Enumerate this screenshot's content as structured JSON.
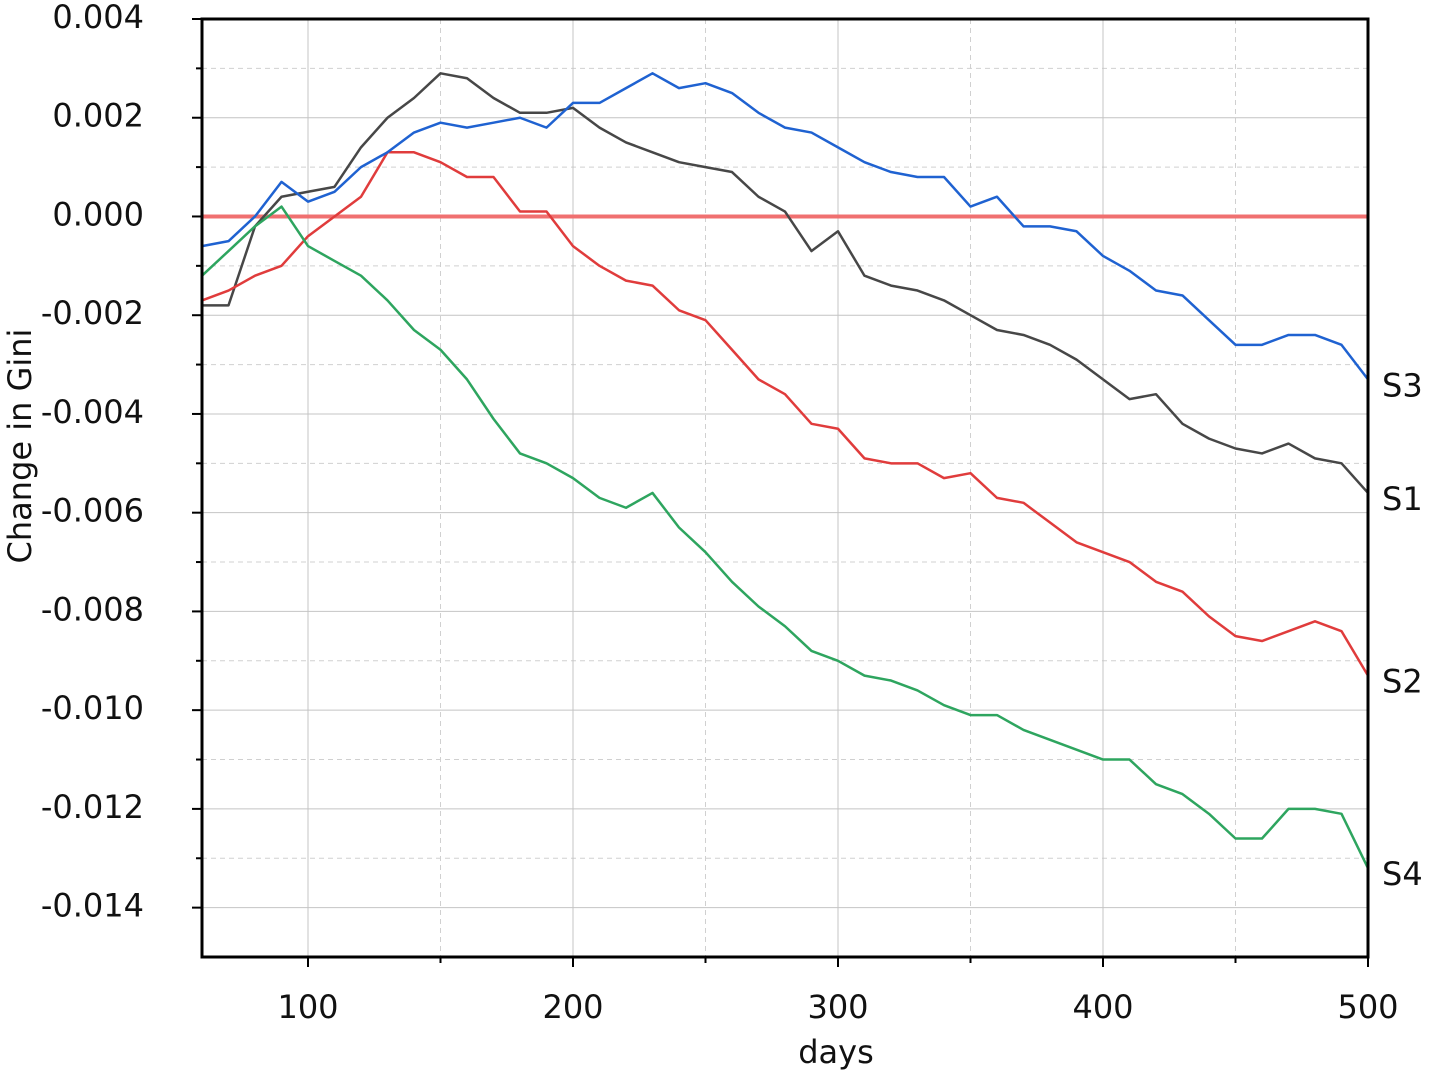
{
  "chart_data": {
    "type": "line",
    "xlabel": "days",
    "ylabel": "Change in Gini",
    "x": [
      60,
      70,
      80,
      90,
      100,
      110,
      120,
      130,
      140,
      150,
      160,
      170,
      180,
      190,
      200,
      210,
      220,
      230,
      240,
      250,
      260,
      270,
      280,
      290,
      300,
      310,
      320,
      330,
      340,
      350,
      360,
      370,
      380,
      390,
      400,
      410,
      420,
      430,
      440,
      450,
      460,
      470,
      480,
      490,
      500
    ],
    "series": [
      {
        "name": "S1",
        "color": "#474747",
        "values": [
          -0.0018,
          -0.0018,
          -0.0002,
          0.0004,
          0.0005,
          0.0006,
          0.0014,
          0.002,
          0.0024,
          0.0029,
          0.0028,
          0.0024,
          0.0021,
          0.0021,
          0.0022,
          0.0018,
          0.0015,
          0.0013,
          0.0011,
          0.001,
          0.0009,
          0.0004,
          0.0001,
          -0.0007,
          -0.0003,
          -0.0012,
          -0.0014,
          -0.0015,
          -0.0017,
          -0.002,
          -0.0023,
          -0.0024,
          -0.0026,
          -0.0029,
          -0.0033,
          -0.0037,
          -0.0036,
          -0.0042,
          -0.0045,
          -0.0047,
          -0.0048,
          -0.0046,
          -0.0049,
          -0.005,
          -0.0056
        ]
      },
      {
        "name": "S2",
        "color": "#e03c3c",
        "values": [
          -0.0017,
          -0.0015,
          -0.0012,
          -0.001,
          -0.0004,
          0,
          0.0004,
          0.0013,
          0.0013,
          0.0011,
          0.0008,
          0.0008,
          0.0001,
          0.0001,
          -0.0006,
          -0.001,
          -0.0013,
          -0.0014,
          -0.0019,
          -0.0021,
          -0.0027,
          -0.0033,
          -0.0036,
          -0.0042,
          -0.0043,
          -0.0049,
          -0.005,
          -0.005,
          -0.0053,
          -0.0052,
          -0.0057,
          -0.0058,
          -0.0062,
          -0.0066,
          -0.0068,
          -0.007,
          -0.0074,
          -0.0076,
          -0.0081,
          -0.0085,
          -0.0086,
          -0.0084,
          -0.0082,
          -0.0084,
          -0.0093
        ]
      },
      {
        "name": "S3",
        "color": "#1f62d1",
        "values": [
          -0.0006,
          -0.0005,
          0,
          0.0007,
          0.0003,
          0.0005,
          0.001,
          0.0013,
          0.0017,
          0.0019,
          0.0018,
          0.0019,
          0.002,
          0.0018,
          0.0023,
          0.0023,
          0.0026,
          0.0029,
          0.0026,
          0.0027,
          0.0025,
          0.0021,
          0.0018,
          0.0017,
          0.0014,
          0.0011,
          0.0009,
          0.0008,
          0.0008,
          0.0002,
          0.0004,
          -0.0002,
          -0.0002,
          -0.0003,
          -0.0008,
          -0.0011,
          -0.0015,
          -0.0016,
          -0.0021,
          -0.0026,
          -0.0026,
          -0.0024,
          -0.0024,
          -0.0026,
          -0.0033
        ]
      },
      {
        "name": "S4",
        "color": "#2ea55f",
        "values": [
          -0.0012,
          -0.0007,
          -0.0002,
          0.0002,
          -0.0006,
          -0.0009,
          -0.0012,
          -0.0017,
          -0.0023,
          -0.0027,
          -0.0033,
          -0.0041,
          -0.0048,
          -0.005,
          -0.0053,
          -0.0057,
          -0.0059,
          -0.0056,
          -0.0063,
          -0.0068,
          -0.0074,
          -0.0079,
          -0.0083,
          -0.0088,
          -0.009,
          -0.0093,
          -0.0094,
          -0.0096,
          -0.0099,
          -0.0101,
          -0.0101,
          -0.0104,
          -0.0106,
          -0.0108,
          -0.011,
          -0.011,
          -0.0115,
          -0.0117,
          -0.0121,
          -0.0126,
          -0.0126,
          -0.012,
          -0.012,
          -0.0121,
          -0.0132
        ]
      }
    ],
    "xlim": [
      60,
      500
    ],
    "xticks": [
      100,
      200,
      300,
      400,
      500
    ],
    "minor_xticks": [
      150,
      250,
      350,
      450
    ],
    "ylim": [
      -0.015,
      0.004
    ],
    "yticks": [
      0.004,
      0.002,
      {
        "value": 0,
        "label": "0.000"
      },
      -0.002,
      -0.004,
      -0.006,
      -0.008,
      {
        "value": -0.01,
        "label": "-0.010"
      },
      -0.012,
      -0.014
    ],
    "minor_yticks": [
      0.003,
      0.001,
      -0.001,
      -0.003,
      -0.005,
      -0.007,
      -0.009,
      -0.011,
      -0.013
    ],
    "grid": true,
    "reference_line": {
      "value": 0,
      "color": "#f07070"
    },
    "legend": "line-end"
  }
}
